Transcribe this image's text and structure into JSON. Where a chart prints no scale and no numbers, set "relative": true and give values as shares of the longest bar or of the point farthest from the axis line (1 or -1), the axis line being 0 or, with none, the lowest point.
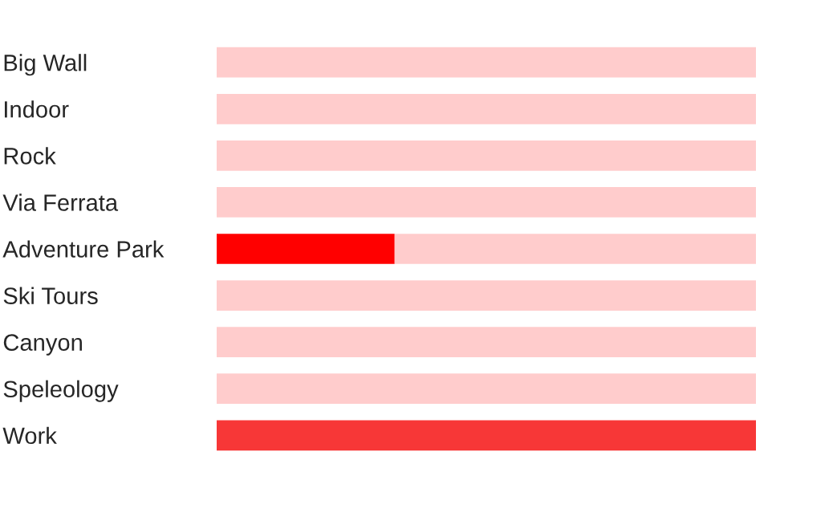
{
  "chart_data": {
    "type": "bar",
    "orientation": "horizontal",
    "stacked": true,
    "relative": true,
    "grid": false,
    "legend": false,
    "categories": [
      "Big Wall",
      "Indoor",
      "Rock",
      "Via Ferrata",
      "Adventure Park",
      "Ski Tours",
      "Canyon",
      "Speleology",
      "Work"
    ],
    "series": [
      {
        "colors": [
          "#ff0000",
          "#ff0000",
          "#ff0000",
          "#ff0000",
          "#ff0000",
          "#ff0000",
          "#ff0000",
          "#ff0000",
          "#f73737"
        ],
        "values": [
          0,
          0,
          0,
          0,
          0.33,
          0,
          0,
          0,
          1
        ]
      },
      {
        "color": "#ffcccc",
        "values": [
          1,
          1,
          1,
          1,
          0.67,
          1,
          1,
          1,
          0
        ]
      }
    ]
  }
}
